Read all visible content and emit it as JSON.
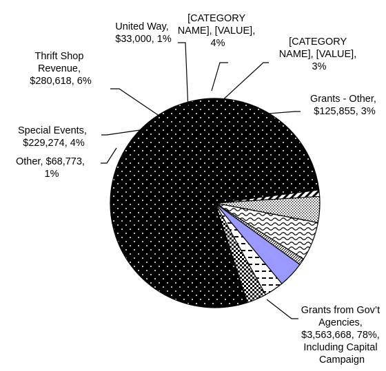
{
  "chart_data": {
    "type": "pie",
    "title": "",
    "slices": [
      {
        "key": "grants_gov",
        "value": 78,
        "color": "#000000",
        "pattern": "dots-white-on-black",
        "label_lines": [
          "Grants from Gov’t",
          "Agencies,",
          "$3,563,668, 78%,",
          "Including Capital",
          "Campaign"
        ]
      },
      {
        "key": "other",
        "value": 1,
        "color": "#ffffff",
        "pattern": "wide-diagonal",
        "label_lines": [
          "Other,  $68,773,",
          "1%"
        ]
      },
      {
        "key": "special_events",
        "value": 4,
        "color": "#ffffff",
        "pattern": "dense-dots",
        "label_lines": [
          "Special Events,",
          "$229,274, 4%"
        ]
      },
      {
        "key": "thrift_shop",
        "value": 6,
        "color": "#ffffff",
        "pattern": "wave",
        "label_lines": [
          "Thrift Shop",
          "Revenue,",
          "$280,618, 6%"
        ]
      },
      {
        "key": "united_way",
        "value": 1,
        "color": "#ffffff",
        "pattern": "narrow-diagonal",
        "label_lines": [
          "United Way,",
          "$33,000, 1%"
        ]
      },
      {
        "key": "category_a",
        "value": 4,
        "color": "#9999ff",
        "pattern": "solid",
        "label_lines": [
          "[CATEGORY",
          "NAME], [VALUE],",
          "4%"
        ]
      },
      {
        "key": "category_b",
        "value": 3,
        "color": "#ffffff",
        "pattern": "horizontal-dashes",
        "label_lines": [
          "[CATEGORY",
          "NAME], [VALUE],",
          "3%"
        ]
      },
      {
        "key": "grants_other",
        "value": 3,
        "color": "#ffffff",
        "pattern": "checker",
        "label_lines": [
          "Grants - Other,",
          "$125,855, 3%"
        ]
      }
    ]
  }
}
